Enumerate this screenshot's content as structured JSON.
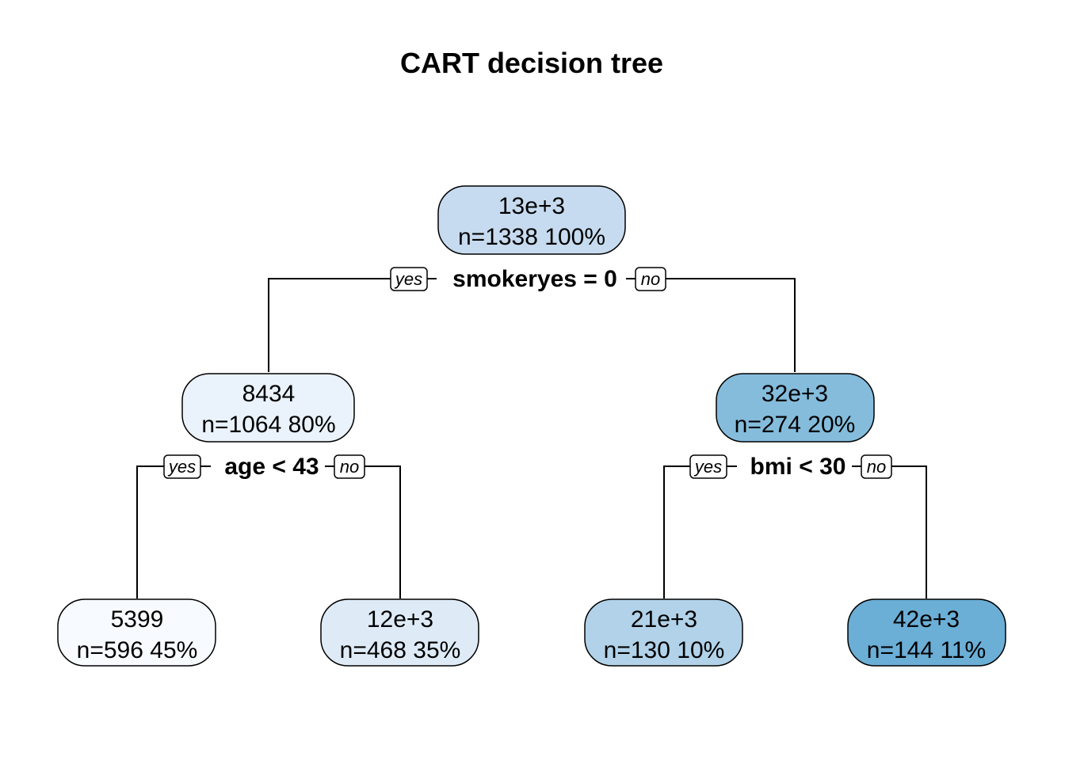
{
  "title": "CART decision tree",
  "colors": {
    "node_n1": "#c6dbef",
    "node_n2": "#eaf2fb",
    "node_n3": "#85bcdc",
    "node_n4": "#f7fbff",
    "node_n5": "#deebf7",
    "node_n6": "#b1d2e8",
    "node_n7": "#6baed6",
    "stroke": "#000000"
  },
  "nodes": {
    "n1": {
      "value": "13e+3",
      "stats": "n=1338  100%"
    },
    "n2": {
      "value": "8434",
      "stats": "n=1064  80%"
    },
    "n3": {
      "value": "32e+3",
      "stats": "n=274  20%"
    },
    "n4": {
      "value": "5399",
      "stats": "n=596  45%"
    },
    "n5": {
      "value": "12e+3",
      "stats": "n=468  35%"
    },
    "n6": {
      "value": "21e+3",
      "stats": "n=130  10%"
    },
    "n7": {
      "value": "42e+3",
      "stats": "n=144  11%"
    }
  },
  "splits": {
    "s1": {
      "label": "smokeryes = 0",
      "yes": "yes",
      "no": "no"
    },
    "s2": {
      "label": "age < 43",
      "yes": "yes",
      "no": "no"
    },
    "s3": {
      "label": "bmi < 30",
      "yes": "yes",
      "no": "no"
    }
  }
}
